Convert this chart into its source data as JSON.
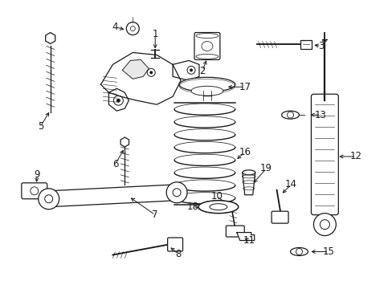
{
  "background_color": "#ffffff",
  "line_color": "#1a1a1a",
  "fig_width": 4.89,
  "fig_height": 3.6,
  "dpi": 100,
  "label_fs": 8.5,
  "lw_base": 0.9
}
